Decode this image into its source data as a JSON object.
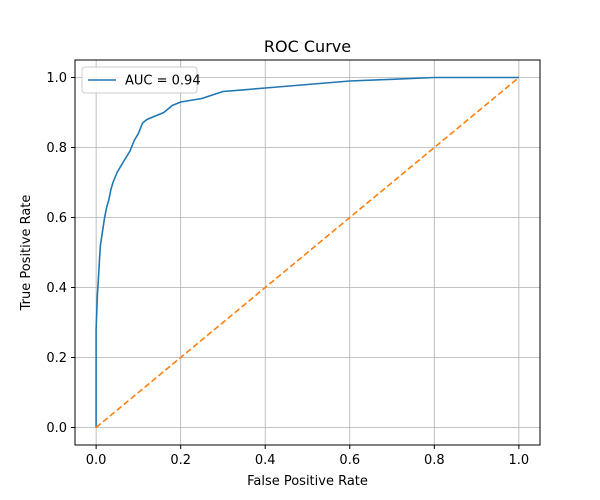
{
  "chart_data": {
    "type": "line",
    "title": "ROC Curve",
    "xlabel": "False Positive Rate",
    "ylabel": "True Positive Rate",
    "xlim": [
      -0.05,
      1.05
    ],
    "ylim": [
      -0.05,
      1.05
    ],
    "xticks": [
      0.0,
      0.2,
      0.4,
      0.6,
      0.8,
      1.0
    ],
    "xtick_labels": [
      "0.0",
      "0.2",
      "0.4",
      "0.6",
      "0.8",
      "1.0"
    ],
    "yticks": [
      0.0,
      0.2,
      0.4,
      0.6,
      0.8,
      1.0
    ],
    "ytick_labels": [
      "0.0",
      "0.2",
      "0.4",
      "0.6",
      "0.8",
      "1.0"
    ],
    "grid": true,
    "legend_position": "top-left",
    "series": [
      {
        "name": "AUC = 0.94",
        "color": "#1f77b4",
        "style": "solid",
        "x": [
          0.0,
          0.0,
          0.003,
          0.005,
          0.008,
          0.01,
          0.015,
          0.02,
          0.025,
          0.03,
          0.035,
          0.04,
          0.05,
          0.06,
          0.07,
          0.08,
          0.09,
          0.1,
          0.11,
          0.12,
          0.14,
          0.16,
          0.18,
          0.2,
          0.25,
          0.3,
          0.35,
          0.4,
          0.5,
          0.6,
          0.7,
          0.8,
          0.9,
          1.0
        ],
        "y": [
          0.0,
          0.28,
          0.38,
          0.42,
          0.48,
          0.52,
          0.56,
          0.6,
          0.63,
          0.65,
          0.68,
          0.7,
          0.73,
          0.75,
          0.77,
          0.79,
          0.82,
          0.84,
          0.87,
          0.88,
          0.89,
          0.9,
          0.92,
          0.93,
          0.94,
          0.96,
          0.965,
          0.97,
          0.98,
          0.99,
          0.995,
          1.0,
          1.0,
          1.0
        ]
      },
      {
        "name": "",
        "color": "#ff7f0e",
        "style": "dashed",
        "x": [
          0.0,
          1.0
        ],
        "y": [
          0.0,
          1.0
        ]
      }
    ]
  }
}
